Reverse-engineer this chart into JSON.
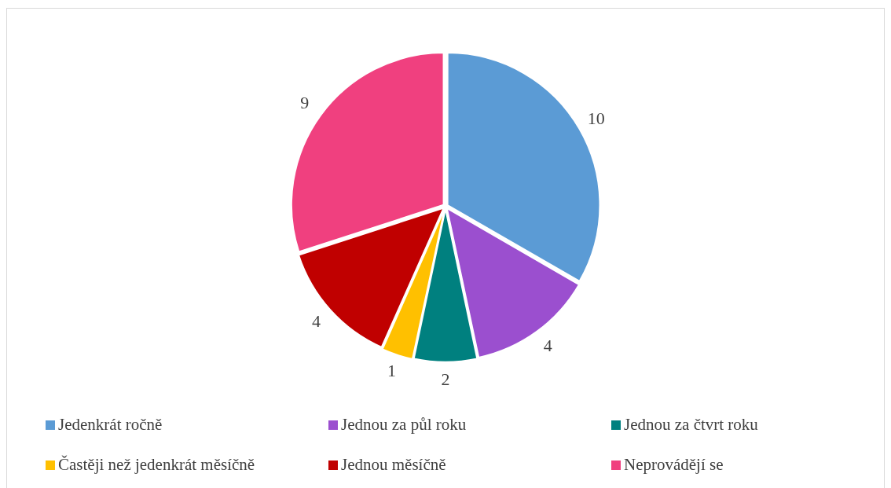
{
  "chart_data": {
    "type": "pie",
    "categories": [
      "Jedenkrát ročně",
      "Jednou za půl roku",
      "Jednou za čtvrt roku",
      "Častěji než jedenkrát měsíčně",
      "Jednou měsíčně",
      "Neprovádějí se"
    ],
    "values": [
      10,
      4,
      2,
      1,
      4,
      9
    ],
    "colors": [
      "#5b9bd5",
      "#9b4fcf",
      "#00807f",
      "#ffc000",
      "#c00000",
      "#f0407f"
    ],
    "data_labels": true,
    "legend": "bottom"
  }
}
